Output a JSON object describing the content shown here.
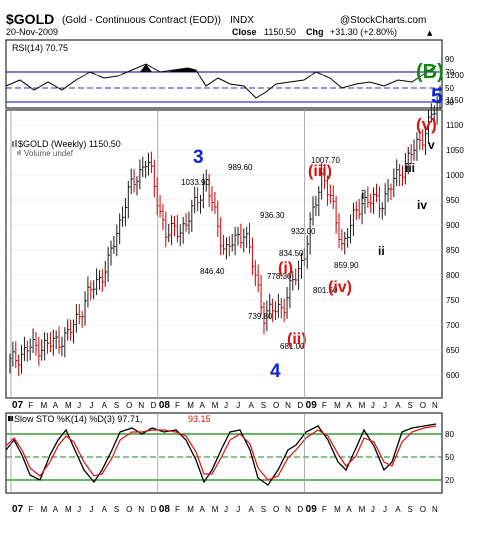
{
  "header": {
    "symbol": "$GOLD",
    "description": "(Gold - Continuous Contract (EOD))",
    "exchange": "INDX",
    "source": "@StockCharts.com",
    "date": "20-Nov-2009",
    "close_label": "Close",
    "close_value": "1150.50",
    "chg_label": "Chg",
    "chg_value": "+31.30 (+2.80%)",
    "chg_arrow": "▲"
  },
  "rsi_panel": {
    "legend": "RSI(14) 70.75",
    "levels": [
      "90",
      "70",
      "50",
      "30"
    ]
  },
  "price_panel": {
    "legend": "$GOLD (Weekly) 1150.50",
    "volume_note": "Volume undef",
    "y_ticks": [
      "1200",
      "1150",
      "1100",
      "1050",
      "1000",
      "950",
      "900",
      "850",
      "800",
      "750",
      "700",
      "650",
      "600"
    ],
    "x_ticks": [
      "07",
      "F",
      "M",
      "A",
      "M",
      "J",
      "J",
      "A",
      "S",
      "O",
      "N",
      "D",
      "08",
      "F",
      "M",
      "A",
      "M",
      "J",
      "J",
      "A",
      "S",
      "O",
      "N",
      "D",
      "09",
      "F",
      "M",
      "A",
      "M",
      "J",
      "J",
      "A",
      "S",
      "O",
      "N"
    ],
    "price_labels": [
      "1033.90",
      "989.60",
      "846.40",
      "936.30",
      "1007.70",
      "932.00",
      "834.50",
      "778.30",
      "739.80",
      "681.00",
      "801.50",
      "859.90"
    ],
    "wave_labels": {
      "w3": "3",
      "w4": "4",
      "w5": "5",
      "wB": "(B)",
      "wi": "(i)",
      "wii": "(ii)",
      "wiii": "(iii)",
      "wiv": "(iv)",
      "wv": "(v)",
      "sub_i": "i",
      "sub_ii": "ii",
      "sub_iii": "iii",
      "sub_iv": "iv",
      "sub_v": "v"
    }
  },
  "sto_panel": {
    "legend_prefix": "Slow STO %K(14) %D(3) 97.71,",
    "legend_d": "93.15",
    "levels": [
      "80",
      "50",
      "20"
    ]
  },
  "colors": {
    "bullish": "#1a1a1a",
    "bearish": "#cc0000",
    "wave_blue": "#1122dd",
    "wave_red": "#dd1111",
    "wave_green": "#118811",
    "line_purple": "#3333aa"
  },
  "chart_data": [
    {
      "type": "line",
      "title": "RSI(14)",
      "x": [
        "2007-01",
        "2007-04",
        "2007-07",
        "2007-10",
        "2008-01",
        "2008-03",
        "2008-05",
        "2008-07",
        "2008-09",
        "2008-10",
        "2008-12",
        "2009-02",
        "2009-04",
        "2009-06",
        "2009-08",
        "2009-10",
        "2009-11"
      ],
      "series": [
        {
          "name": "RSI(14)",
          "values": [
            50,
            52,
            48,
            60,
            74,
            78,
            45,
            55,
            32,
            38,
            52,
            64,
            44,
            50,
            55,
            62,
            70.75
          ]
        }
      ],
      "ylim": [
        20,
        95
      ]
    },
    {
      "type": "line",
      "title": "$GOLD (Weekly) 1150.50",
      "x": [
        "2007-01",
        "2007-03",
        "2007-06",
        "2007-08",
        "2007-10",
        "2007-12",
        "2008-02",
        "2008-03",
        "2008-04",
        "2008-06",
        "2008-07",
        "2008-08",
        "2008-09",
        "2008-10",
        "2008-11",
        "2008-12",
        "2009-02",
        "2009-04",
        "2009-06",
        "2009-08",
        "2009-09",
        "2009-10",
        "2009-11"
      ],
      "series": [
        {
          "name": "$GOLD",
          "values": [
            625,
            655,
            660,
            680,
            760,
            820,
            960,
            1033.9,
            880,
            900,
            989.6,
            846.4,
            890,
            720,
            739.8,
            834.5,
            1007.7,
            859.9,
            950,
            945,
            1010,
            1070,
            1150.5
          ]
        }
      ],
      "ylim": [
        580,
        1220
      ]
    },
    {
      "type": "line",
      "title": "Slow STO %K(14) %D(3)",
      "x": [
        "2007-01",
        "2007-03",
        "2007-05",
        "2007-07",
        "2007-09",
        "2007-11",
        "2008-01",
        "2008-03",
        "2008-05",
        "2008-07",
        "2008-09",
        "2008-11",
        "2009-01",
        "2009-03",
        "2009-05",
        "2009-07",
        "2009-09",
        "2009-11"
      ],
      "series": [
        {
          "name": "%K",
          "values": [
            60,
            30,
            70,
            20,
            85,
            80,
            90,
            85,
            20,
            75,
            15,
            40,
            90,
            20,
            80,
            30,
            90,
            97.71
          ]
        },
        {
          "name": "%D",
          "values": [
            55,
            35,
            65,
            25,
            80,
            82,
            88,
            80,
            25,
            70,
            20,
            35,
            85,
            25,
            75,
            35,
            85,
            93.15
          ]
        }
      ],
      "ylim": [
        0,
        100
      ]
    }
  ]
}
